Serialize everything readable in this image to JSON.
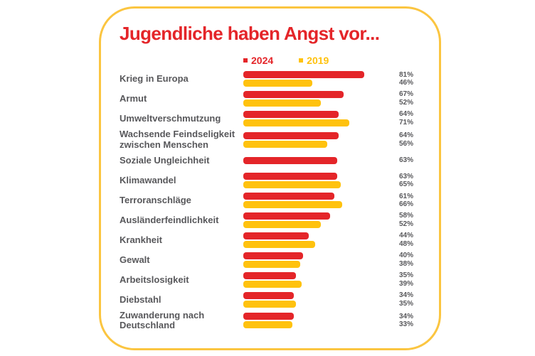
{
  "title": "Jugendliche haben Angst vor...",
  "legend": {
    "items": [
      {
        "label": "2024",
        "color": "#e42529"
      },
      {
        "label": "2019",
        "color": "#ffc20e"
      }
    ]
  },
  "colors": {
    "red_2024": "#e42529",
    "yellow_2019": "#ffc20e",
    "card_border": "#fbc540",
    "text_gray": "#58585b",
    "background": "#ffffff"
  },
  "chart_data": {
    "type": "bar",
    "orientation": "horizontal",
    "title": "Jugendliche haben Angst vor...",
    "legend_position": "top",
    "value_label_position": "right",
    "xlim": [
      0,
      100
    ],
    "grid": false,
    "categories": [
      "Krieg in Europa",
      "Armut",
      "Umweltverschmutzung",
      "Wachsende Feindseligkeit zwischen Menschen",
      "Soziale Ungleichheit",
      "Klimawandel",
      "Terroranschläge",
      "Ausländerfeindlichkeit",
      "Krankheit",
      "Gewalt",
      "Arbeitslosigkeit",
      "Diebstahl",
      "Zuwanderung nach Deutschland"
    ],
    "series": [
      {
        "name": "2024",
        "color": "#e42529",
        "values": [
          81,
          67,
          64,
          64,
          63,
          63,
          61,
          58,
          44,
          40,
          35,
          34,
          34
        ],
        "labels": [
          "81%",
          "67%",
          "64%",
          "64%",
          "63%",
          "63%",
          "61%",
          "58%",
          "44%",
          "40%",
          "35%",
          "34%",
          "34%"
        ]
      },
      {
        "name": "2019",
        "color": "#ffc20e",
        "values": [
          46,
          52,
          71,
          56,
          null,
          65,
          66,
          52,
          48,
          38,
          39,
          35,
          33
        ],
        "labels": [
          "46%",
          "52%",
          "71%",
          "56%",
          null,
          "65%",
          "66%",
          "52%",
          "48%",
          "38%",
          "39%",
          "35%",
          "33%"
        ]
      }
    ]
  }
}
